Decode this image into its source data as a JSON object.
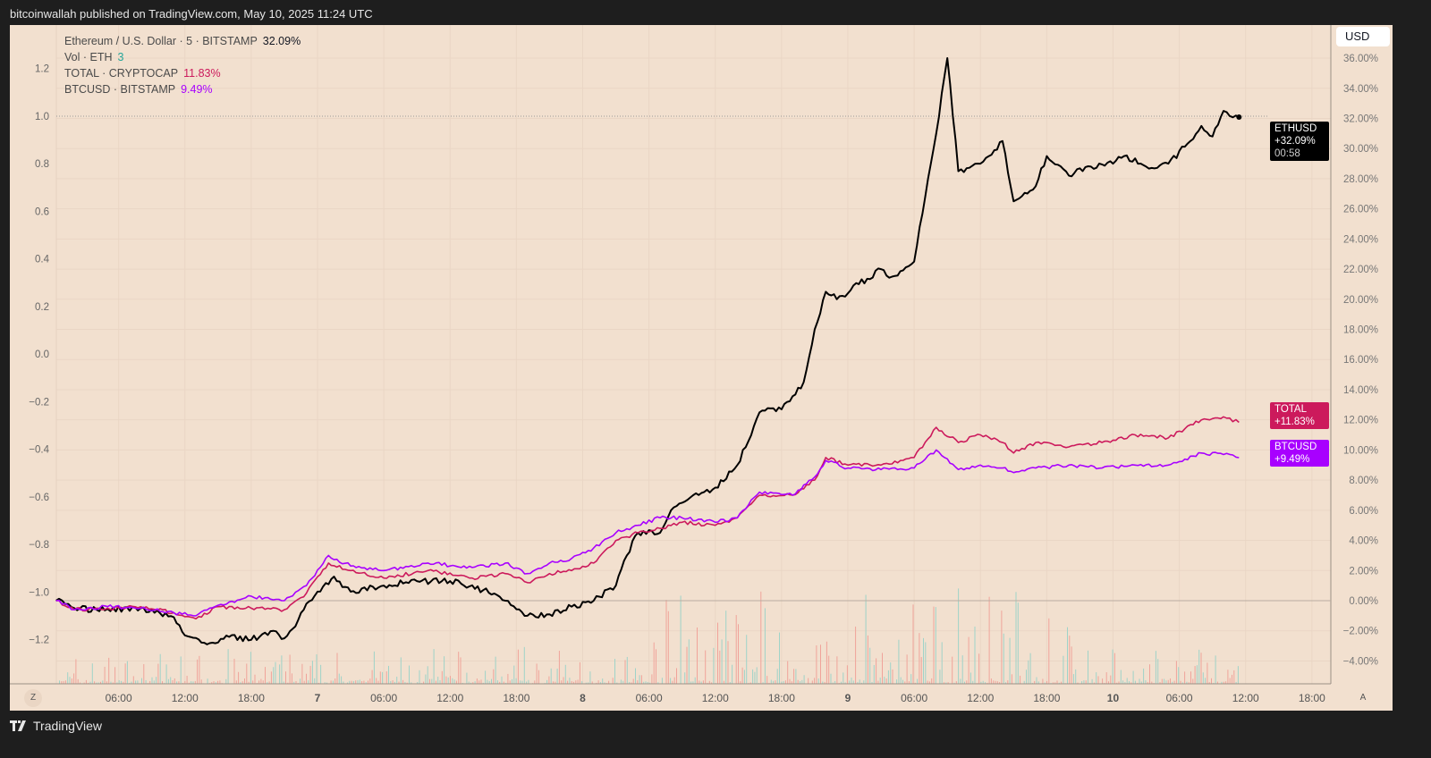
{
  "header": {
    "publisher_text": "bitcoinwallah published on TradingView.com, May 10, 2025 11:24 UTC"
  },
  "legend": [
    {
      "label": "Ethereum / U.S. Dollar · 5 · BITSTAMP",
      "value": "32.09%",
      "color": "#131722"
    },
    {
      "label": "Vol · ETH",
      "value": "3",
      "color": "#26a69a"
    },
    {
      "label": "TOTAL · CRYPTOCAP",
      "value": "11.83%",
      "color": "#cc1a5c"
    },
    {
      "label": "BTCUSD · BITSTAMP",
      "value": "9.49%",
      "color": "#a800ff"
    }
  ],
  "currency_button": "USD",
  "price_labels": {
    "eth": {
      "symbol": "ETHUSD",
      "value": "+32.09%",
      "countdown": "00:58",
      "color": "#000000"
    },
    "total": {
      "symbol": "TOTAL",
      "value": "+11.83%",
      "color": "#cc1a5c"
    },
    "btc": {
      "symbol": "BTCUSD",
      "value": "+9.49%",
      "color": "#a800ff"
    }
  },
  "buttons": {
    "zoom_reset": "Z",
    "auto_scale": "A"
  },
  "footer": {
    "brand": "TradingView"
  },
  "chart_data": {
    "type": "line",
    "title": "",
    "left_axis": {
      "ticks": [
        "1.2",
        "1.0",
        "0.8",
        "0.6",
        "0.4",
        "0.2",
        "0.0",
        "−0.2",
        "−0.4",
        "−0.6",
        "−0.8",
        "−1.0",
        "−1.2"
      ],
      "range": [
        -1.2,
        1.2
      ]
    },
    "right_axis": {
      "ticks": [
        "36.00%",
        "34.00%",
        "32.00%",
        "30.00%",
        "28.00%",
        "26.00%",
        "24.00%",
        "22.00%",
        "20.00%",
        "18.00%",
        "16.00%",
        "14.00%",
        "12.00%",
        "10.00%",
        "8.00%",
        "6.00%",
        "4.00%",
        "2.00%",
        "0.00%",
        "−2.00%",
        "−4.00%"
      ],
      "unit": "%",
      "range": [
        -4,
        36
      ]
    },
    "x_axis": {
      "ticks": [
        "06:00",
        "12:00",
        "18:00",
        "7",
        "06:00",
        "12:00",
        "18:00",
        "8",
        "06:00",
        "12:00",
        "18:00",
        "9",
        "06:00",
        "12:00",
        "18:00",
        "10",
        "06:00",
        "12:00",
        "18:00"
      ]
    },
    "grid": true,
    "series": [
      {
        "name": "ETHUSD",
        "color": "#000000",
        "x": [
          "05-06 00:20",
          "05-06 02:00",
          "05-06 04:00",
          "05-06 08:00",
          "05-06 11:00",
          "05-06 12:00",
          "05-06 14:00",
          "05-06 16:00",
          "05-06 18:00",
          "05-06 20:00",
          "05-06 21:00",
          "05-06 22:00",
          "05-06 23:00",
          "05-07 00:00",
          "05-07 01:30",
          "05-07 03:00",
          "05-07 06:00",
          "05-07 09:00",
          "05-07 12:00",
          "05-07 15:00",
          "05-07 17:00",
          "05-07 19:00",
          "05-07 21:00",
          "05-07 23:00",
          "05-08 01:00",
          "05-08 03:00",
          "05-08 04:00",
          "05-08 05:00",
          "05-08 07:00",
          "05-08 08:00",
          "05-08 10:00",
          "05-08 12:00",
          "05-08 14:00",
          "05-08 16:00",
          "05-08 18:00",
          "05-08 20:00",
          "05-08 21:00",
          "05-08 22:00",
          "05-08 23:00",
          "05-09 01:00",
          "05-09 03:00",
          "05-09 04:00",
          "05-09 06:00",
          "05-09 08:00",
          "05-09 09:00",
          "05-09 10:00",
          "05-09 12:00",
          "05-09 14:00",
          "05-09 15:00",
          "05-09 17:00",
          "05-09 18:00",
          "05-09 20:00",
          "05-09 22:00",
          "05-10 00:00",
          "05-10 01:00",
          "05-10 03:00",
          "05-10 05:00",
          "05-10 07:00",
          "05-10 08:00",
          "05-10 09:00",
          "05-10 10:00",
          "05-10 11:24"
        ],
        "y": [
          0,
          -0.5,
          -0.6,
          -0.5,
          -1.1,
          -2.3,
          -2.9,
          -2.4,
          -2.6,
          -2.0,
          -2.5,
          -1.7,
          -0.2,
          0.6,
          1.6,
          0.6,
          1.0,
          1.3,
          1.3,
          0.7,
          0.0,
          -1.0,
          -0.9,
          -0.4,
          0.0,
          1.0,
          3.0,
          4.5,
          4.5,
          6.0,
          7.0,
          7.5,
          9.0,
          12.5,
          12.7,
          14.5,
          18.0,
          20.5,
          20.0,
          21.0,
          22.0,
          21.5,
          22.5,
          31,
          36,
          28.5,
          29.0,
          30.5,
          26.5,
          27.5,
          29.5,
          28.2,
          28.8,
          29.0,
          29.5,
          28.8,
          29.0,
          30.5,
          31.5,
          30.8,
          32.5,
          32.09
        ]
      },
      {
        "name": "TOTAL",
        "color": "#cc1a5c",
        "x": [
          "05-06 00:20",
          "05-06 02:00",
          "05-06 05:00",
          "05-06 08:00",
          "05-06 11:00",
          "05-06 13:00",
          "05-06 15:00",
          "05-06 18:00",
          "05-06 21:00",
          "05-06 23:00",
          "05-07 01:00",
          "05-07 03:00",
          "05-07 06:00",
          "05-07 10:00",
          "05-07 14:00",
          "05-07 17:00",
          "05-07 19:00",
          "05-07 21:00",
          "05-07 23:00",
          "05-08 01:00",
          "05-08 03:00",
          "05-08 05:00",
          "05-08 07:00",
          "05-08 09:00",
          "05-08 12:00",
          "05-08 14:00",
          "05-08 16:00",
          "05-08 19:00",
          "05-08 21:00",
          "05-08 22:00",
          "05-09 00:00",
          "05-09 03:00",
          "05-09 06:00",
          "05-09 08:00",
          "05-09 10:00",
          "05-09 12:00",
          "05-09 14:00",
          "05-09 15:00",
          "05-09 17:00",
          "05-09 20:00",
          "05-09 23:00",
          "05-10 02:00",
          "05-10 05:00",
          "05-10 08:00",
          "05-10 10:00",
          "05-10 11:24"
        ],
        "y": [
          0,
          -0.6,
          -0.5,
          -0.4,
          -0.8,
          -1.2,
          -0.4,
          -0.5,
          -0.6,
          0.5,
          2.5,
          2.0,
          1.5,
          2.0,
          1.5,
          1.8,
          1.2,
          1.8,
          2.0,
          2.5,
          4.0,
          4.5,
          4.8,
          5.2,
          5.0,
          5.5,
          7.0,
          7.0,
          8.0,
          9.5,
          9.0,
          9.0,
          9.5,
          11.5,
          10.5,
          11.0,
          10.5,
          9.8,
          10.5,
          10.2,
          10.5,
          11.0,
          10.8,
          12.0,
          12.2,
          11.83
        ]
      },
      {
        "name": "BTCUSD",
        "color": "#a800ff",
        "x": [
          "05-06 00:20",
          "05-06 02:00",
          "05-06 05:00",
          "05-06 08:00",
          "05-06 11:00",
          "05-06 13:00",
          "05-06 15:00",
          "05-06 18:00",
          "05-06 21:00",
          "05-06 23:00",
          "05-07 01:00",
          "05-07 03:00",
          "05-07 06:00",
          "05-07 10:00",
          "05-07 14:00",
          "05-07 17:00",
          "05-07 19:00",
          "05-07 21:00",
          "05-07 23:00",
          "05-08 01:00",
          "05-08 03:00",
          "05-08 05:00",
          "05-08 07:00",
          "05-08 09:00",
          "05-08 12:00",
          "05-08 14:00",
          "05-08 16:00",
          "05-08 19:00",
          "05-08 21:00",
          "05-08 22:00",
          "05-09 00:00",
          "05-09 03:00",
          "05-09 06:00",
          "05-09 08:00",
          "05-09 10:00",
          "05-09 12:00",
          "05-09 14:00",
          "05-09 15:00",
          "05-09 17:00",
          "05-09 20:00",
          "05-09 23:00",
          "05-10 02:00",
          "05-10 05:00",
          "05-10 08:00",
          "05-10 10:00",
          "05-10 11:24"
        ],
        "y": [
          0,
          -0.6,
          -0.4,
          -0.5,
          -0.8,
          -1.0,
          -0.3,
          0.3,
          0.0,
          1.0,
          3.0,
          2.3,
          2.0,
          2.5,
          2.2,
          2.5,
          1.8,
          2.5,
          2.8,
          3.5,
          4.5,
          5.0,
          5.5,
          5.5,
          5.2,
          5.5,
          7.2,
          7.0,
          8.2,
          9.3,
          8.8,
          8.7,
          8.8,
          10.0,
          8.7,
          9.0,
          8.8,
          8.5,
          8.8,
          9.0,
          8.8,
          9.0,
          9.0,
          9.8,
          9.7,
          9.49
        ]
      }
    ]
  }
}
